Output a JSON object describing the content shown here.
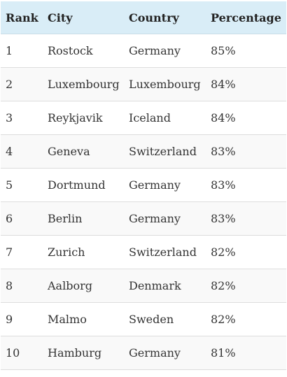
{
  "table": {
    "headers": [
      "Rank",
      "City",
      "Country",
      "Percentage"
    ],
    "rows": [
      [
        "1",
        "Rostock",
        "Germany",
        "85%"
      ],
      [
        "2",
        "Luxembourg",
        "Luxembourg",
        "84%"
      ],
      [
        "3",
        "Reykjavik",
        "Iceland",
        "84%"
      ],
      [
        "4",
        "Geneva",
        "Switzerland",
        "83%"
      ],
      [
        "5",
        "Dortmund",
        "Germany",
        "83%"
      ],
      [
        "6",
        "Berlin",
        "Germany",
        "83%"
      ],
      [
        "7",
        "Zurich",
        "Switzerland",
        "82%"
      ],
      [
        "8",
        "Aalborg",
        "Denmark",
        "82%"
      ],
      [
        "9",
        "Malmo",
        "Sweden",
        "82%"
      ],
      [
        "10",
        "Hamburg",
        "Germany",
        "81%"
      ]
    ]
  },
  "colors": {
    "header_background": "#d9edf7",
    "row_stripe": "#f9f9f9",
    "row_divider": "#dddddd"
  }
}
